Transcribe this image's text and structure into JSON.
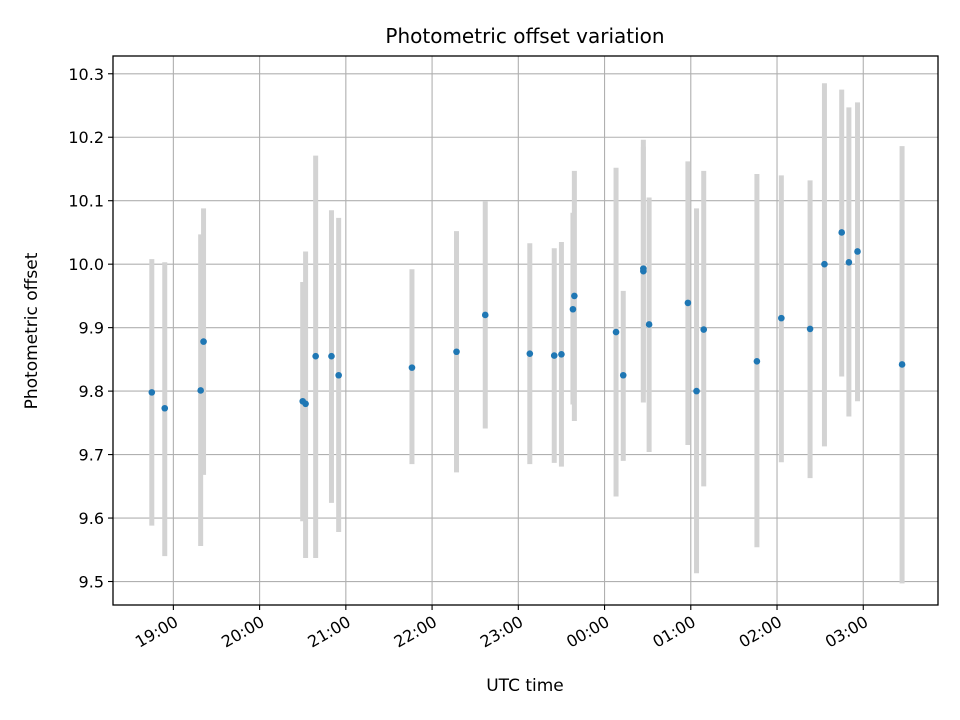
{
  "chart_data": {
    "type": "scatter",
    "title": "Photometric offset variation",
    "xlabel": "UTC time",
    "ylabel": "Photometric offset",
    "x_axis_type": "time",
    "xlim": [
      "18:18",
      "03:52"
    ],
    "ylim": [
      9.463,
      10.328
    ],
    "grid": true,
    "x_ticks": [
      "19:00",
      "20:00",
      "21:00",
      "22:00",
      "23:00",
      "00:00",
      "01:00",
      "02:00",
      "03:00"
    ],
    "y_ticks": [
      "9.5",
      "9.6",
      "9.7",
      "9.8",
      "9.9",
      "10.0",
      "10.1",
      "10.2",
      "10.3"
    ],
    "y_tick_values": [
      9.5,
      9.6,
      9.7,
      9.8,
      9.9,
      10.0,
      10.1,
      10.2,
      10.3
    ],
    "colors": {
      "marker": "#1f77b4",
      "errorbar": "#d3d3d3",
      "grid": "#b0b0b0"
    },
    "points": [
      {
        "x": "18:45",
        "y": 9.798,
        "yerr": [
          9.588,
          10.008
        ]
      },
      {
        "x": "18:54",
        "y": 9.773,
        "yerr": [
          9.54,
          10.003
        ]
      },
      {
        "x": "19:19",
        "y": 9.801,
        "yerr": [
          9.556,
          10.047
        ]
      },
      {
        "x": "19:21",
        "y": 9.878,
        "yerr": [
          9.668,
          10.088
        ]
      },
      {
        "x": "20:30",
        "y": 9.784,
        "yerr": [
          9.595,
          9.972
        ]
      },
      {
        "x": "20:32",
        "y": 9.78,
        "yerr": [
          9.537,
          10.02
        ]
      },
      {
        "x": "20:39",
        "y": 9.855,
        "yerr": [
          9.537,
          10.171
        ]
      },
      {
        "x": "20:50",
        "y": 9.855,
        "yerr": [
          9.624,
          10.085
        ]
      },
      {
        "x": "20:55",
        "y": 9.825,
        "yerr": [
          9.578,
          10.073
        ]
      },
      {
        "x": "21:46",
        "y": 9.837,
        "yerr": [
          9.685,
          9.992
        ]
      },
      {
        "x": "22:17",
        "y": 9.862,
        "yerr": [
          9.672,
          10.052
        ]
      },
      {
        "x": "22:37",
        "y": 9.92,
        "yerr": [
          9.741,
          10.099
        ]
      },
      {
        "x": "23:08",
        "y": 9.859,
        "yerr": [
          9.685,
          10.033
        ]
      },
      {
        "x": "23:25",
        "y": 9.856,
        "yerr": [
          9.687,
          10.025
        ]
      },
      {
        "x": "23:30",
        "y": 9.858,
        "yerr": [
          9.681,
          10.035
        ]
      },
      {
        "x": "23:38",
        "y": 9.929,
        "yerr": [
          9.779,
          10.081
        ]
      },
      {
        "x": "23:39",
        "y": 9.95,
        "yerr": [
          9.753,
          10.147
        ]
      },
      {
        "x": "00:08",
        "y": 9.893,
        "yerr": [
          9.634,
          10.152
        ]
      },
      {
        "x": "00:13",
        "y": 9.825,
        "yerr": [
          9.69,
          9.958
        ]
      },
      {
        "x": "00:27",
        "y": 9.989,
        "yerr": [
          9.782,
          10.196
        ]
      },
      {
        "x": "00:27",
        "y": 9.993,
        "yerr": [
          9.8,
          10.185
        ]
      },
      {
        "x": "00:31",
        "y": 9.905,
        "yerr": [
          9.704,
          10.105
        ]
      },
      {
        "x": "00:58",
        "y": 9.939,
        "yerr": [
          9.715,
          10.162
        ]
      },
      {
        "x": "01:04",
        "y": 9.8,
        "yerr": [
          9.513,
          10.088
        ]
      },
      {
        "x": "01:09",
        "y": 9.897,
        "yerr": [
          9.65,
          10.147
        ]
      },
      {
        "x": "01:46",
        "y": 9.847,
        "yerr": [
          9.554,
          10.142
        ]
      },
      {
        "x": "02:03",
        "y": 9.915,
        "yerr": [
          9.688,
          10.14
        ]
      },
      {
        "x": "02:23",
        "y": 9.898,
        "yerr": [
          9.663,
          10.132
        ]
      },
      {
        "x": "02:33",
        "y": 10.0,
        "yerr": [
          9.713,
          10.285
        ]
      },
      {
        "x": "02:45",
        "y": 10.05,
        "yerr": [
          9.823,
          10.275
        ]
      },
      {
        "x": "02:50",
        "y": 10.003,
        "yerr": [
          9.76,
          10.247
        ]
      },
      {
        "x": "02:56",
        "y": 10.02,
        "yerr": [
          9.784,
          10.255
        ]
      },
      {
        "x": "03:27",
        "y": 9.842,
        "yerr": [
          9.497,
          10.186
        ]
      }
    ]
  }
}
